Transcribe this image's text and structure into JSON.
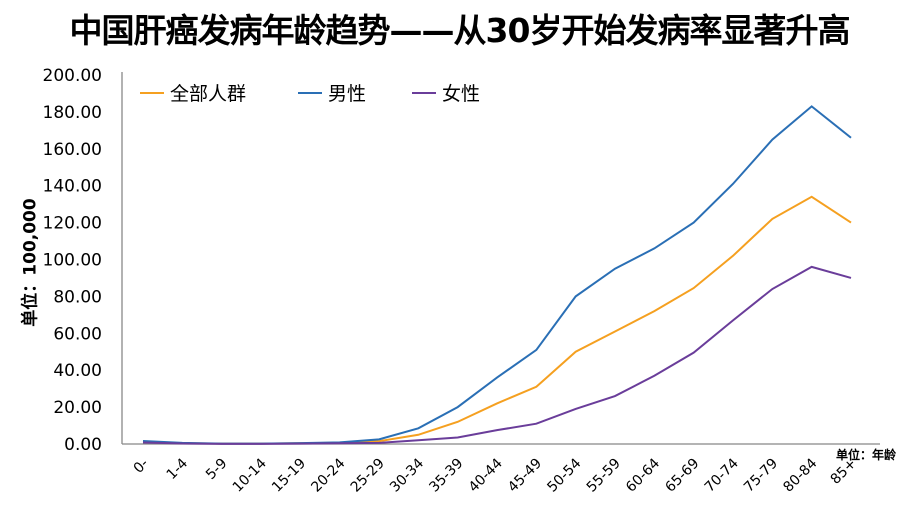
{
  "chart_data": {
    "type": "line",
    "title": "中国肝癌发病年龄趋势——从30岁开始发病率显著升高",
    "ylabel": "单位：100,000",
    "xunit": "单位：年龄",
    "ylim": [
      0,
      200
    ],
    "yticks": [
      "0.00",
      "20.00",
      "40.00",
      "60.00",
      "80.00",
      "100.00",
      "120.00",
      "140.00",
      "160.00",
      "180.00",
      "200.00"
    ],
    "grid": false,
    "legend": "top-left",
    "categories": [
      "0-",
      "1-4",
      "5-9",
      "10-14",
      "15-19",
      "20-24",
      "25-29",
      "30-34",
      "35-39",
      "40-44",
      "45-49",
      "50-54",
      "55-59",
      "60-64",
      "65-69",
      "70-74",
      "75-79",
      "80-84",
      "85+"
    ],
    "series": [
      {
        "name": "全部人群",
        "color": "#f5a020",
        "values": [
          1.2,
          0.4,
          0.2,
          0.2,
          0.4,
          0.7,
          1.5,
          5,
          12,
          22,
          31,
          50,
          61,
          72,
          84.5,
          102,
          122,
          134,
          120
        ]
      },
      {
        "name": "男性",
        "color": "#2a6fb5",
        "values": [
          1.6,
          0.6,
          0.2,
          0.2,
          0.5,
          0.9,
          2.5,
          8.5,
          20,
          36,
          51,
          80,
          95,
          106,
          120,
          141,
          165,
          183,
          166
        ]
      },
      {
        "name": "女性",
        "color": "#6a3d9a",
        "values": [
          0.8,
          0.3,
          0.1,
          0.1,
          0.2,
          0.4,
          0.6,
          2,
          3.5,
          7.5,
          11,
          19,
          26,
          37,
          49.5,
          67,
          84,
          96,
          90
        ]
      }
    ]
  }
}
